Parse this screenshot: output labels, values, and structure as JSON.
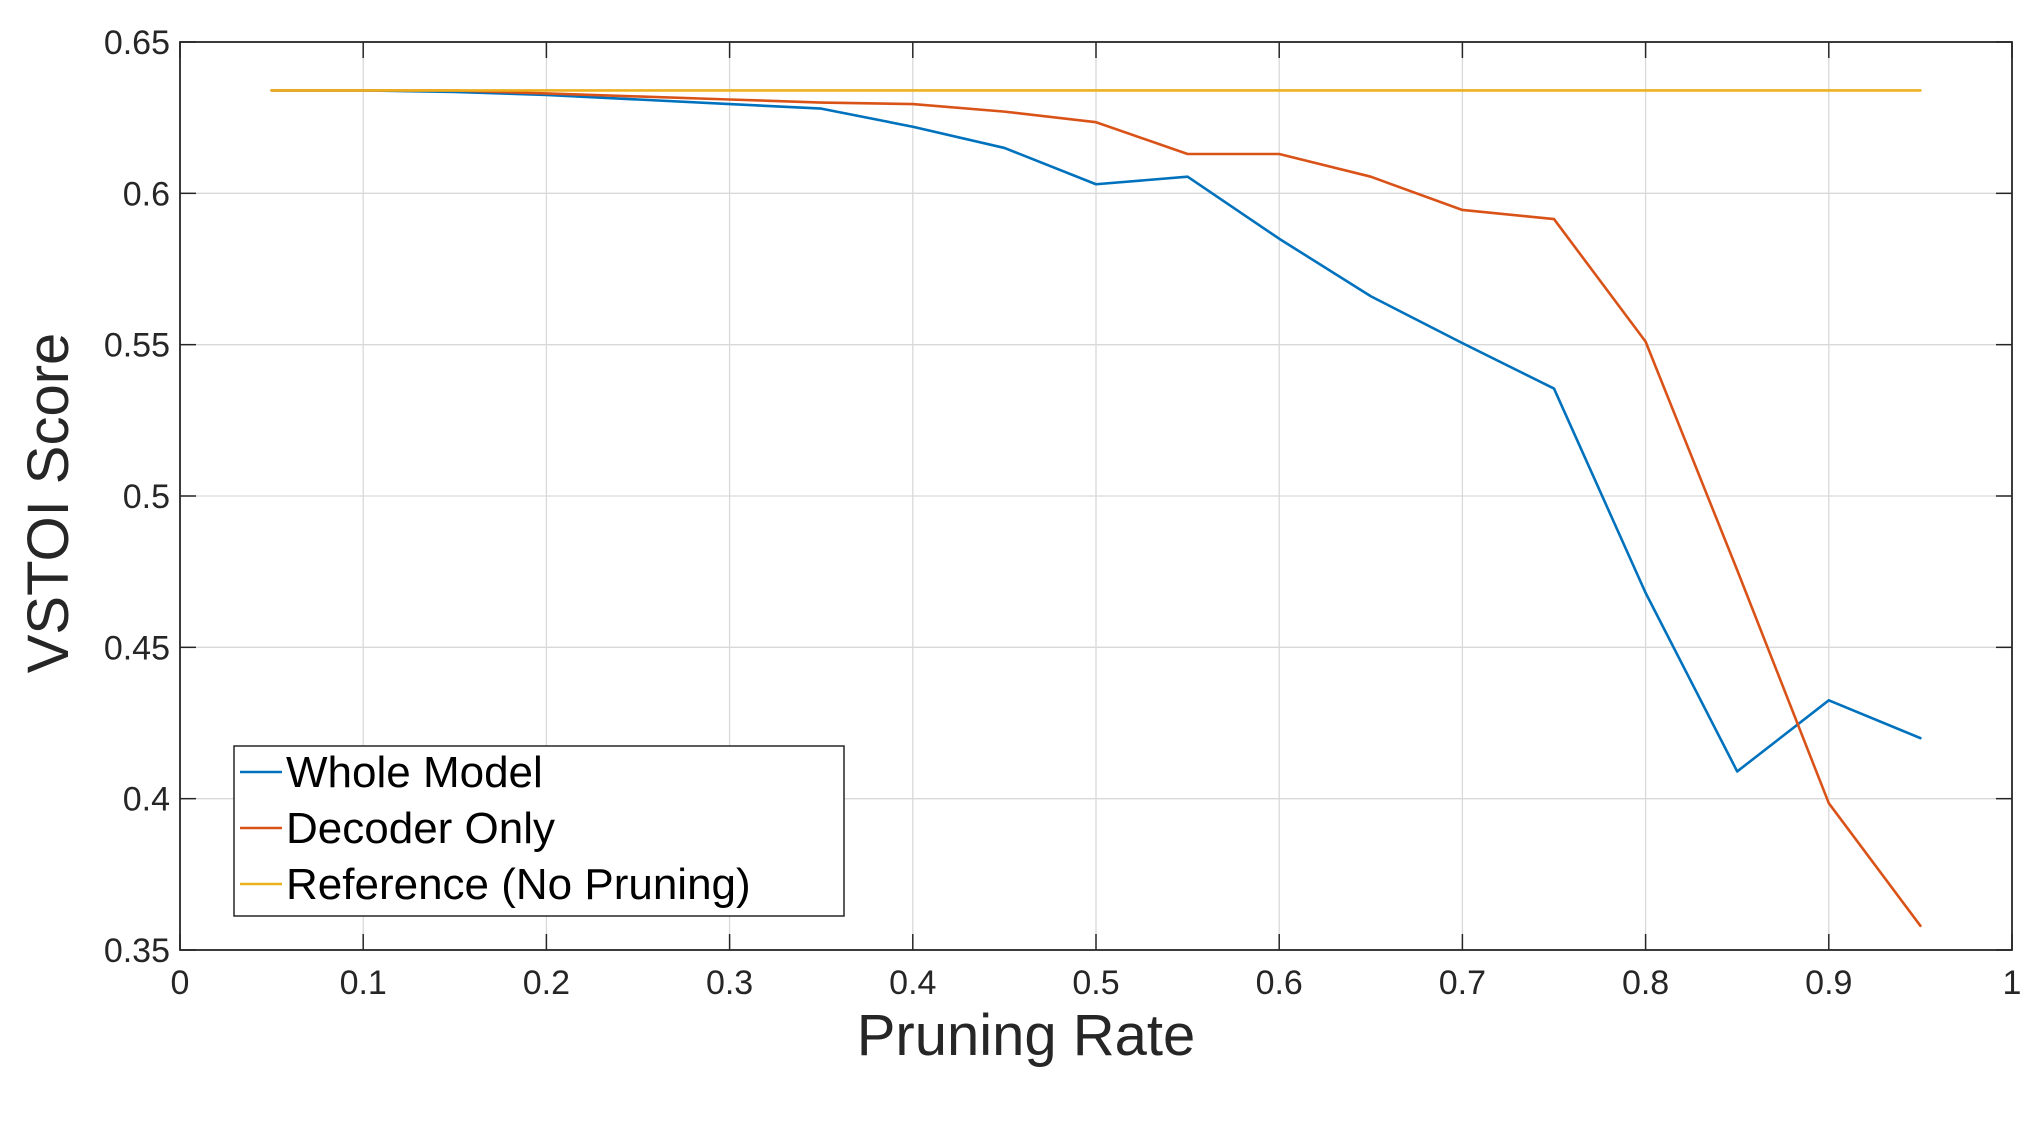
{
  "chart_data": {
    "type": "line",
    "title": "",
    "xlabel": "Pruning Rate",
    "ylabel": "VSTOI Score",
    "xlim": [
      0,
      1
    ],
    "ylim": [
      0.35,
      0.65
    ],
    "xticks": [
      0,
      0.1,
      0.2,
      0.3,
      0.4,
      0.5,
      0.6,
      0.7,
      0.8,
      0.9,
      1
    ],
    "xtick_labels": [
      "0",
      "0.1",
      "0.2",
      "0.3",
      "0.4",
      "0.5",
      "0.6",
      "0.7",
      "0.8",
      "0.9",
      "1"
    ],
    "yticks": [
      0.35,
      0.4,
      0.45,
      0.5,
      0.55,
      0.6,
      0.65
    ],
    "ytick_labels": [
      "0.35",
      "0.4",
      "0.45",
      "0.5",
      "0.55",
      "0.6",
      "0.65"
    ],
    "grid": true,
    "legend_position": "bottom-left",
    "x": [
      0.05,
      0.1,
      0.15,
      0.2,
      0.25,
      0.3,
      0.35,
      0.4,
      0.45,
      0.5,
      0.55,
      0.6,
      0.65,
      0.7,
      0.75,
      0.8,
      0.85,
      0.9,
      0.95
    ],
    "series": [
      {
        "name": "Whole Model",
        "color": "#0072BD",
        "values": [
          0.634,
          0.634,
          0.6335,
          0.6325,
          0.631,
          0.6295,
          0.628,
          0.622,
          0.615,
          0.603,
          0.6055,
          0.585,
          0.566,
          0.5505,
          0.5355,
          0.468,
          0.409,
          0.4325,
          0.42
        ]
      },
      {
        "name": "Decoder Only",
        "color": "#D95319",
        "values": [
          0.634,
          0.634,
          0.634,
          0.633,
          0.632,
          0.631,
          0.63,
          0.6295,
          0.627,
          0.6235,
          0.613,
          0.613,
          0.6055,
          0.5945,
          0.5915,
          0.551,
          0.4755,
          0.3985,
          0.358
        ]
      },
      {
        "name": "Reference (No Pruning)",
        "color": "#EDB120",
        "values": [
          0.634,
          0.634,
          0.634,
          0.634,
          0.634,
          0.634,
          0.634,
          0.634,
          0.634,
          0.634,
          0.634,
          0.634,
          0.634,
          0.634,
          0.634,
          0.634,
          0.634,
          0.634,
          0.634
        ]
      }
    ]
  }
}
